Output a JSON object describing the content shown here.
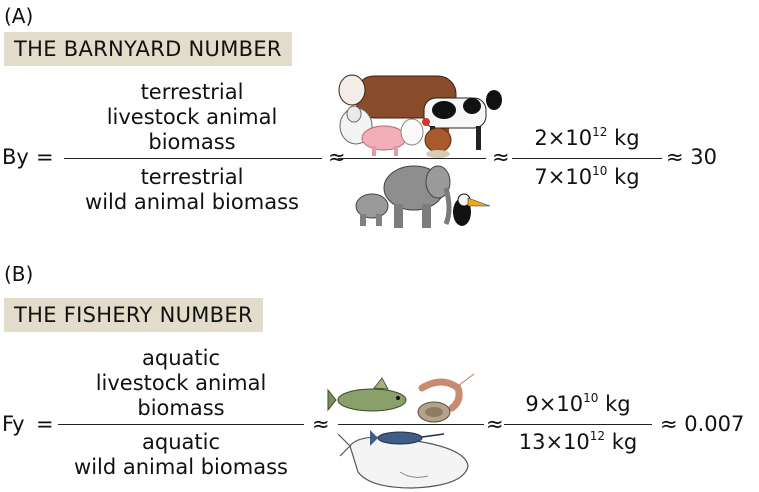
{
  "panel_a": {
    "letter": "(A)",
    "banner": "THE BARNYARD NUMBER",
    "lhs": "By",
    "eq": "=",
    "num_lines": [
      "terrestrial",
      "livestock animal",
      "biomass"
    ],
    "den_lines": [
      "terrestrial",
      "wild animal biomass"
    ],
    "approx": "≈",
    "num_mantissa": "2×10",
    "num_exp": "12",
    "num_unit": " kg",
    "den_mantissa": "7×10",
    "den_exp": "10",
    "den_unit": " kg",
    "result": "≈ 30",
    "icons": [
      "cow-icon",
      "dairy-cow-icon",
      "sheep-icon",
      "pig-icon",
      "chicken-icon",
      "elephant-icon",
      "baby-elephant-icon",
      "toucan-icon"
    ]
  },
  "panel_b": {
    "letter": "(B)",
    "banner": "THE FISHERY NUMBER",
    "lhs": "Fy",
    "eq": "=",
    "num_lines": [
      "aquatic",
      "livestock animal",
      "biomass"
    ],
    "den_lines": [
      "aquatic",
      "wild animal biomass"
    ],
    "approx": "≈",
    "num_mantissa": "9×10",
    "num_exp": "10",
    "num_unit": " kg",
    "den_mantissa": "13×10",
    "den_exp": "12",
    "den_unit": " kg",
    "result": "≈ 0.007",
    "icons": [
      "fish-icon",
      "shrimp-icon",
      "oyster-icon",
      "whale-icon",
      "marlin-icon"
    ]
  }
}
